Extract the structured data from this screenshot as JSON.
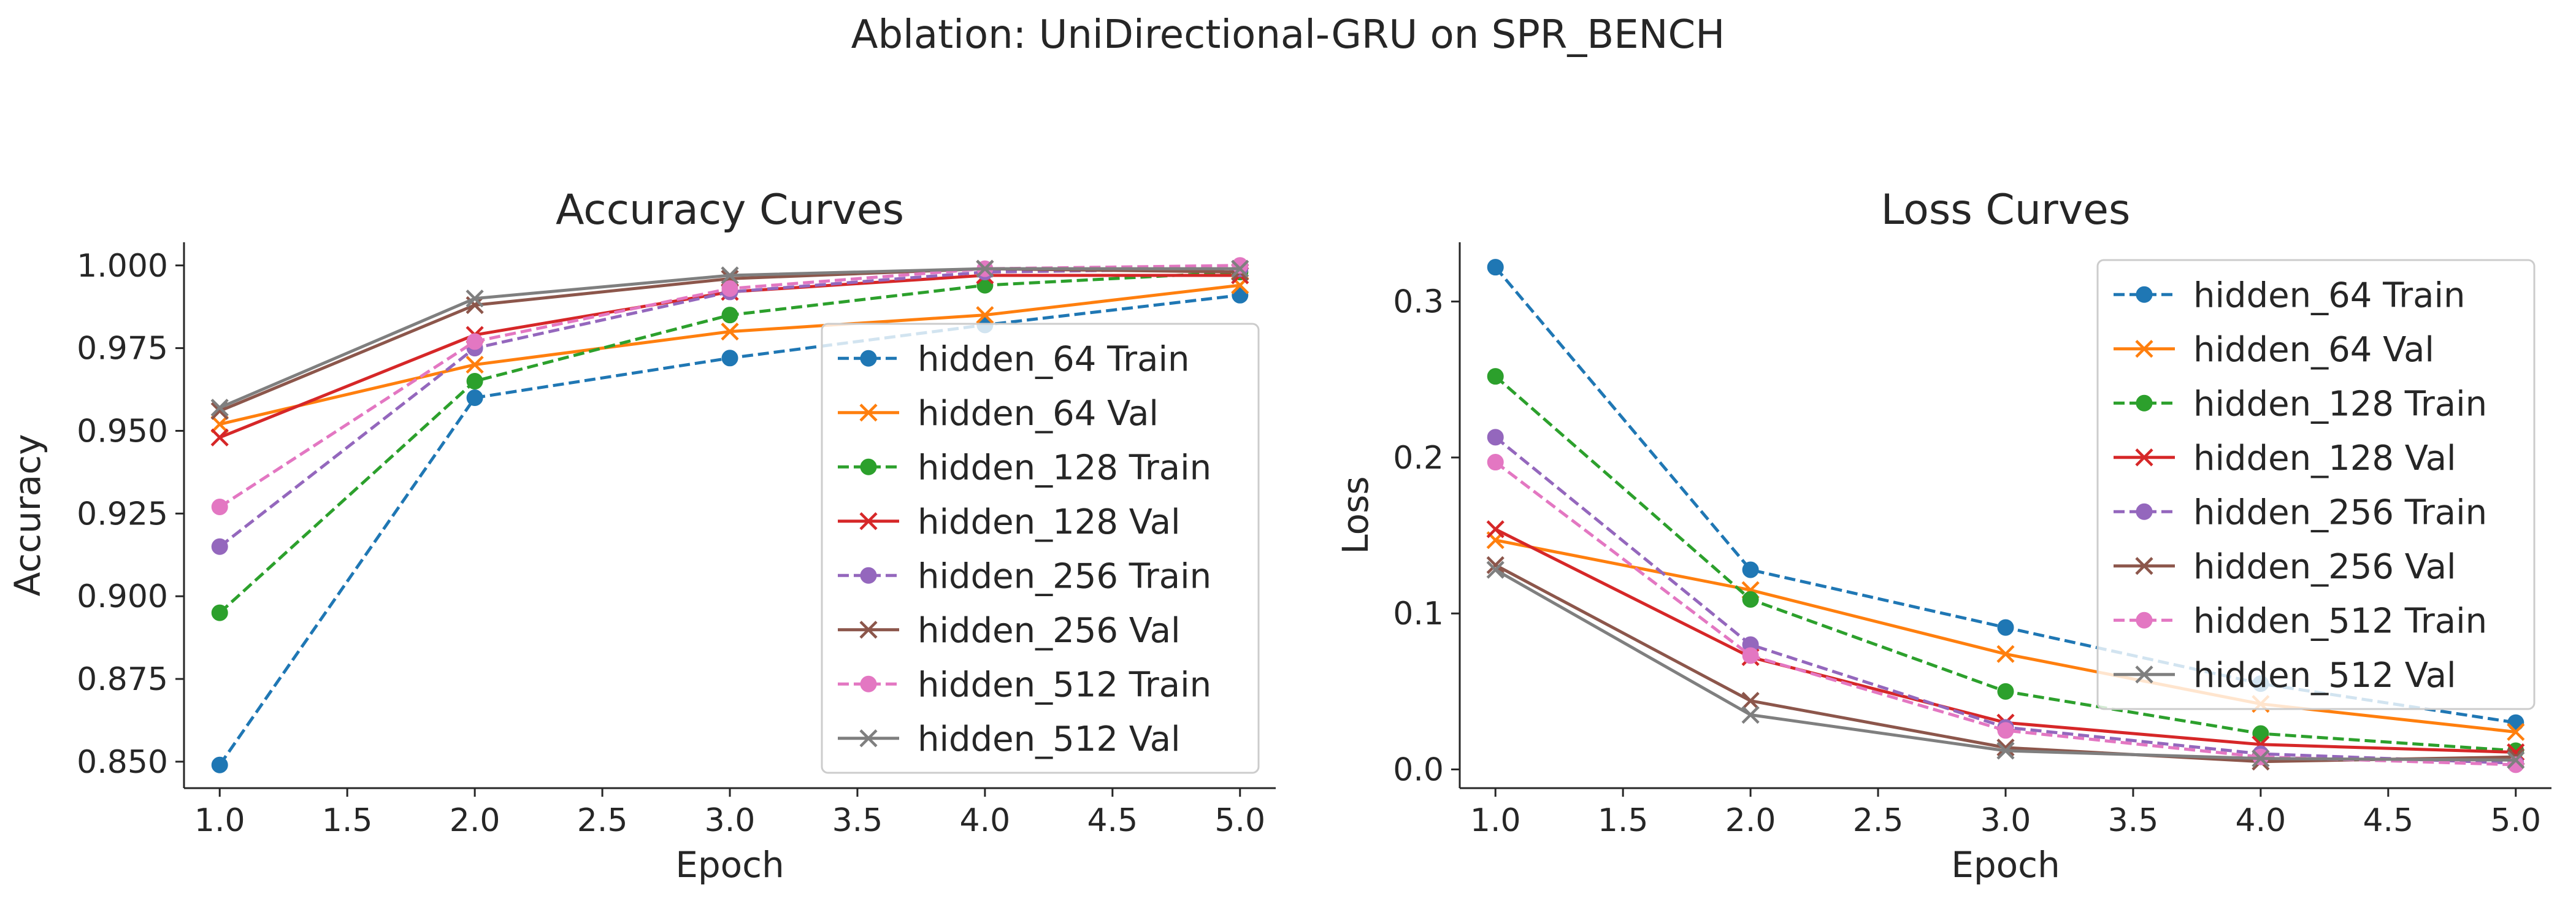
{
  "figure": {
    "title": "Ablation: UniDirectional-GRU on SPR_BENCH"
  },
  "colors": {
    "hidden_64": "#1f77b4",
    "hidden_64_val": "#ff7f0e",
    "hidden_128": "#2ca02c",
    "hidden_128_val": "#d62728",
    "hidden_256": "#9467bd",
    "hidden_256_val": "#8c564b",
    "hidden_512": "#e377c2",
    "hidden_512_val": "#7f7f7f"
  },
  "chart_data": [
    {
      "type": "line",
      "title": "Accuracy Curves",
      "xlabel": "Epoch",
      "ylabel": "Accuracy",
      "xlim": [
        0.86,
        5.14
      ],
      "ylim": [
        0.842,
        1.007
      ],
      "xticks": [
        "1.0",
        "1.5",
        "2.0",
        "2.5",
        "3.0",
        "3.5",
        "4.0",
        "4.5",
        "5.0"
      ],
      "yticks": [
        "0.850",
        "0.875",
        "0.900",
        "0.925",
        "0.950",
        "0.975",
        "1.000"
      ],
      "grid": false,
      "legend": "lower-right",
      "x": [
        1,
        2,
        3,
        4,
        5
      ],
      "series": [
        {
          "name": "hidden_64 Train",
          "color": "#1f77b4",
          "style": "dashed",
          "marker": "circle",
          "values": [
            0.849,
            0.96,
            0.972,
            0.982,
            0.991
          ]
        },
        {
          "name": "hidden_64 Val",
          "color": "#ff7f0e",
          "style": "solid",
          "marker": "x",
          "values": [
            0.952,
            0.97,
            0.98,
            0.985,
            0.994
          ]
        },
        {
          "name": "hidden_128 Train",
          "color": "#2ca02c",
          "style": "dashed",
          "marker": "circle",
          "values": [
            0.895,
            0.965,
            0.985,
            0.994,
            0.998
          ]
        },
        {
          "name": "hidden_128 Val",
          "color": "#d62728",
          "style": "solid",
          "marker": "x",
          "values": [
            0.948,
            0.979,
            0.992,
            0.997,
            0.997
          ]
        },
        {
          "name": "hidden_256 Train",
          "color": "#9467bd",
          "style": "dashed",
          "marker": "circle",
          "values": [
            0.915,
            0.975,
            0.992,
            0.998,
            0.999
          ]
        },
        {
          "name": "hidden_256 Val",
          "color": "#8c564b",
          "style": "solid",
          "marker": "x",
          "values": [
            0.956,
            0.988,
            0.996,
            0.999,
            0.998
          ]
        },
        {
          "name": "hidden_512 Train",
          "color": "#e377c2",
          "style": "dashed",
          "marker": "circle",
          "values": [
            0.927,
            0.977,
            0.993,
            0.999,
            1.0
          ]
        },
        {
          "name": "hidden_512 Val",
          "color": "#7f7f7f",
          "style": "solid",
          "marker": "x",
          "values": [
            0.957,
            0.99,
            0.997,
            0.999,
            0.999
          ]
        }
      ]
    },
    {
      "type": "line",
      "title": "Loss Curves",
      "xlabel": "Epoch",
      "ylabel": "Loss",
      "xlim": [
        0.86,
        5.14
      ],
      "ylim": [
        -0.012,
        0.338
      ],
      "xticks": [
        "1.0",
        "1.5",
        "2.0",
        "2.5",
        "3.0",
        "3.5",
        "4.0",
        "4.5",
        "5.0"
      ],
      "yticks": [
        "0.0",
        "0.1",
        "0.2",
        "0.3"
      ],
      "grid": false,
      "legend": "upper-right",
      "x": [
        1,
        2,
        3,
        4,
        5
      ],
      "series": [
        {
          "name": "hidden_64 Train",
          "color": "#1f77b4",
          "style": "dashed",
          "marker": "circle",
          "values": [
            0.322,
            0.128,
            0.091,
            0.055,
            0.03
          ]
        },
        {
          "name": "hidden_64 Val",
          "color": "#ff7f0e",
          "style": "solid",
          "marker": "x",
          "values": [
            0.147,
            0.115,
            0.074,
            0.042,
            0.024
          ]
        },
        {
          "name": "hidden_128 Train",
          "color": "#2ca02c",
          "style": "dashed",
          "marker": "circle",
          "values": [
            0.252,
            0.109,
            0.05,
            0.023,
            0.012
          ]
        },
        {
          "name": "hidden_128 Val",
          "color": "#d62728",
          "style": "solid",
          "marker": "x",
          "values": [
            0.154,
            0.072,
            0.03,
            0.016,
            0.011
          ]
        },
        {
          "name": "hidden_256 Train",
          "color": "#9467bd",
          "style": "dashed",
          "marker": "circle",
          "values": [
            0.213,
            0.08,
            0.027,
            0.01,
            0.004
          ]
        },
        {
          "name": "hidden_256 Val",
          "color": "#8c564b",
          "style": "solid",
          "marker": "x",
          "values": [
            0.131,
            0.044,
            0.014,
            0.005,
            0.008
          ]
        },
        {
          "name": "hidden_512 Train",
          "color": "#e377c2",
          "style": "dashed",
          "marker": "circle",
          "values": [
            0.197,
            0.073,
            0.025,
            0.008,
            0.003
          ]
        },
        {
          "name": "hidden_512 Val",
          "color": "#7f7f7f",
          "style": "solid",
          "marker": "x",
          "values": [
            0.128,
            0.035,
            0.012,
            0.007,
            0.006
          ]
        }
      ]
    }
  ]
}
